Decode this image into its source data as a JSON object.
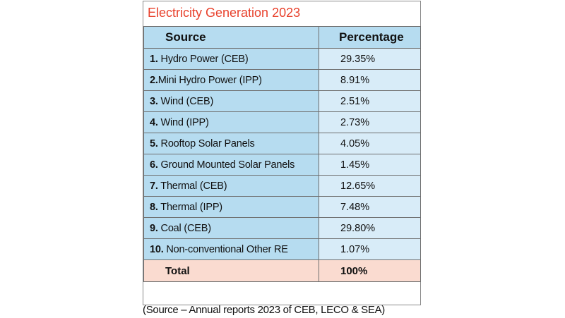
{
  "title": "Electricity Generation 2023",
  "columns": {
    "source": "Source",
    "percentage": "Percentage"
  },
  "rows": [
    {
      "num": "1.",
      "label": "Hydro Power (CEB)",
      "pct": "29.35%"
    },
    {
      "num": "2.",
      "label": "Mini Hydro Power (IPP)",
      "pct": "8.91%"
    },
    {
      "num": "3.",
      "label": "Wind (CEB)",
      "pct": "2.51%"
    },
    {
      "num": "4.",
      "label": "Wind (IPP)",
      "pct": "2.73%"
    },
    {
      "num": "5.",
      "label": "Rooftop Solar Panels",
      "pct": "4.05%"
    },
    {
      "num": "6.",
      "label": "Ground Mounted Solar Panels",
      "pct": "1.45%"
    },
    {
      "num": "7.",
      "label": "Thermal (CEB)",
      "pct": "12.65%"
    },
    {
      "num": "8.",
      "label": "Thermal (IPP)",
      "pct": "7.48%"
    },
    {
      "num": "9.",
      "label": "Coal (CEB)",
      "pct": "29.80%"
    },
    {
      "num": "10.",
      "label": "Non-conventional Other RE",
      "pct": "1.07%"
    }
  ],
  "total": {
    "label": "Total",
    "value": "100%"
  },
  "source_note": "(Source – Annual reports 2023 of CEB, LECO & SEA)",
  "colors": {
    "title": "#e8412c",
    "header_bg": "#b6dcf0",
    "source_cell_bg": "#b6dcf0",
    "percentage_cell_bg": "#d8ecf8",
    "total_row_bg": "#fadbd0",
    "border": "#6f6f6f"
  }
}
